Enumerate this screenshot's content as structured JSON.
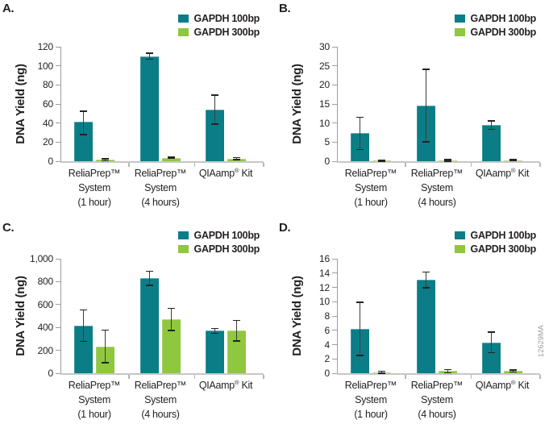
{
  "watermark": "12629MA",
  "legend": {
    "position": "top-right",
    "items": [
      {
        "label": "GAPDH 100bp",
        "color": "#0A7D87"
      },
      {
        "label": "GAPDH 300bp",
        "color": "#8FC73E"
      }
    ]
  },
  "chart_data": [
    {
      "type": "bar",
      "panel_label": "A.",
      "ylabel": "DNA Yield (ng)",
      "ylim": [
        0,
        120
      ],
      "ytick_labels": [
        "0",
        "20",
        "40",
        "60",
        "80",
        "100",
        "120"
      ],
      "grid": false,
      "legend_position": "top-right",
      "categories": [
        "ReliaPrep™ System (1 hour)",
        "ReliaPrep™ System (4 hours)",
        "QIAamp® Kit"
      ],
      "category_lines": [
        [
          "ReliaPrep™",
          "System",
          "(1 hour)"
        ],
        [
          "ReliaPrep™",
          "System",
          "(4 hours)"
        ],
        [
          "QIAamp® Kit"
        ]
      ],
      "series": [
        {
          "name": "GAPDH 100bp",
          "color": "#0A7D87",
          "values": [
            41,
            110,
            54
          ],
          "err_minus": [
            13,
            3,
            15
          ],
          "err_plus": [
            11,
            3,
            15
          ]
        },
        {
          "name": "GAPDH 300bp",
          "color": "#8FC73E",
          "values": [
            1.5,
            3.5,
            2.5
          ],
          "err_minus": [
            1,
            0.5,
            0.8
          ],
          "err_plus": [
            1,
            0.5,
            1
          ]
        }
      ]
    },
    {
      "type": "bar",
      "panel_label": "B.",
      "ylabel": "DNA Yield (ng)",
      "ylim": [
        0,
        30
      ],
      "ytick_labels": [
        "0",
        "5",
        "10",
        "15",
        "20",
        "25",
        "30"
      ],
      "grid": false,
      "legend_position": "top-right",
      "categories": [
        "ReliaPrep™ System (1 hour)",
        "ReliaPrep™ System (4 hours)",
        "QIAamp® Kit"
      ],
      "category_lines": [
        [
          "ReliaPrep™",
          "System",
          "(1 hour)"
        ],
        [
          "ReliaPrep™",
          "System",
          "(4 hours)"
        ],
        [
          "QIAamp® Kit"
        ]
      ],
      "series": [
        {
          "name": "GAPDH 100bp",
          "color": "#0A7D87",
          "values": [
            7.4,
            14.5,
            9.5
          ],
          "err_minus": [
            4.3,
            9.4,
            1.1
          ],
          "err_plus": [
            4.1,
            9.5,
            1.0
          ]
        },
        {
          "name": "GAPDH 300bp",
          "color": "#8FC73E",
          "values": [
            0.15,
            0.25,
            0.25
          ],
          "err_minus": [
            0.1,
            0.15,
            0.1
          ],
          "err_plus": [
            0.1,
            0.15,
            0.1
          ]
        }
      ]
    },
    {
      "type": "bar",
      "panel_label": "C.",
      "ylabel": "DNA Yield (ng)",
      "ylim": [
        0,
        1000
      ],
      "ytick_labels": [
        "0",
        "200",
        "400",
        "600",
        "800",
        "1,000"
      ],
      "grid": false,
      "legend_position": "top-right",
      "categories": [
        "ReliaPrep™ System (1 hour)",
        "ReliaPrep™ System (4 hours)",
        "QIAamp® Kit"
      ],
      "category_lines": [
        [
          "ReliaPrep™",
          "System",
          "(1 hour)"
        ],
        [
          "ReliaPrep™",
          "System",
          "(4 hours)"
        ],
        [
          "QIAamp® Kit"
        ]
      ],
      "series": [
        {
          "name": "GAPDH 100bp",
          "color": "#0A7D87",
          "values": [
            415,
            830,
            370
          ],
          "err_minus": [
            135,
            60,
            20
          ],
          "err_plus": [
            135,
            60,
            20
          ]
        },
        {
          "name": "GAPDH 300bp",
          "color": "#8FC73E",
          "values": [
            235,
            470,
            372
          ],
          "err_minus": [
            140,
            95,
            88
          ],
          "err_plus": [
            140,
            95,
            88
          ]
        }
      ]
    },
    {
      "type": "bar",
      "panel_label": "D.",
      "ylabel": "DNA Yield (ng)",
      "ylim": [
        0,
        16
      ],
      "ytick_labels": [
        "0",
        "2",
        "4",
        "6",
        "8",
        "10",
        "12",
        "14",
        "16"
      ],
      "grid": false,
      "legend_position": "top-right",
      "categories": [
        "ReliaPrep™ System (1 hour)",
        "ReliaPrep™ System (4 hours)",
        "QIAamp® Kit"
      ],
      "category_lines": [
        [
          "ReliaPrep™",
          "System",
          "(1 hour)"
        ],
        [
          "ReliaPrep™",
          "System",
          "(4 hours)"
        ],
        [
          "QIAamp® Kit"
        ]
      ],
      "series": [
        {
          "name": "GAPDH 100bp",
          "color": "#0A7D87",
          "values": [
            6.2,
            13.1,
            4.3
          ],
          "err_minus": [
            3.7,
            1.1,
            1.4
          ],
          "err_plus": [
            3.7,
            1.0,
            1.4
          ]
        },
        {
          "name": "GAPDH 300bp",
          "color": "#8FC73E",
          "values": [
            0.15,
            0.3,
            0.3
          ],
          "err_minus": [
            0.1,
            0.2,
            0.1
          ],
          "err_plus": [
            0.1,
            0.2,
            0.1
          ]
        }
      ]
    }
  ]
}
